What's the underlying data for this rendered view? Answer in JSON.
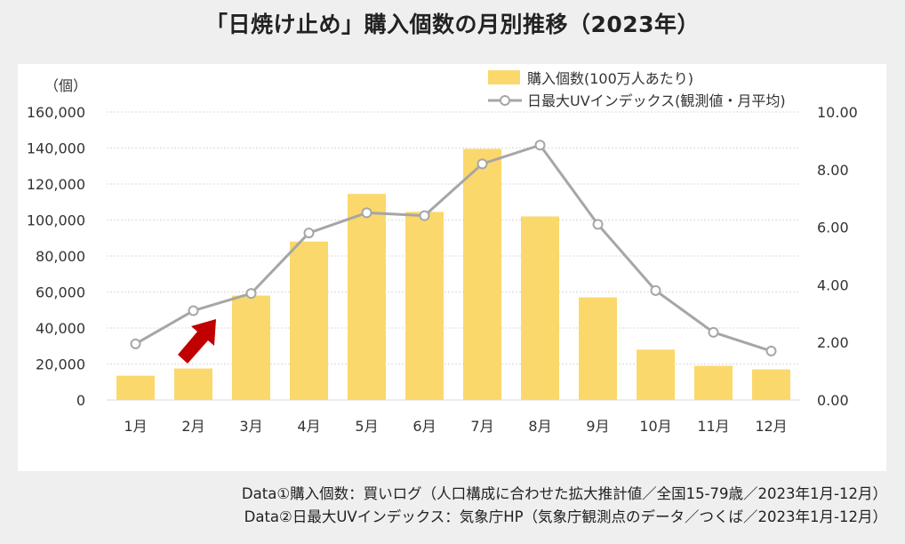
{
  "title": "「日焼け止め」購入個数の月別推移（2023年）",
  "chart_data": {
    "type": "bar+line",
    "title": "「日焼け止め」購入個数の月別推移（2023年）",
    "categories": [
      "1月",
      "2月",
      "3月",
      "4月",
      "5月",
      "6月",
      "7月",
      "8月",
      "9月",
      "10月",
      "11月",
      "12月"
    ],
    "y_left": {
      "unit": "（個）",
      "lim": [
        0,
        160000
      ],
      "ticks": [
        "0",
        "20,000",
        "40,000",
        "60,000",
        "80,000",
        "100,000",
        "120,000",
        "140,000",
        "160,000"
      ],
      "tick_values": [
        0,
        20000,
        40000,
        60000,
        80000,
        100000,
        120000,
        140000,
        160000
      ]
    },
    "y_right": {
      "lim": [
        0,
        10
      ],
      "ticks": [
        "0.00",
        "2.00",
        "4.00",
        "6.00",
        "8.00",
        "10.00"
      ],
      "tick_values": [
        0,
        2,
        4,
        6,
        8,
        10
      ]
    },
    "series": [
      {
        "name": "購入個数(100万人あたり)",
        "type": "bar",
        "axis": "left",
        "color": "#fbd86b",
        "values": [
          13500,
          17500,
          58000,
          88000,
          114500,
          104500,
          139500,
          102000,
          57000,
          28000,
          19000,
          17000
        ]
      },
      {
        "name": "日最大UVインデックス(観測値・月平均)",
        "type": "line",
        "axis": "right",
        "color": "#a6a6a6",
        "values": [
          1.95,
          3.1,
          3.7,
          5.8,
          6.5,
          6.4,
          8.2,
          8.85,
          6.1,
          3.8,
          2.35,
          1.7
        ]
      }
    ],
    "annotation": {
      "type": "arrow",
      "color": "#c00000",
      "near": "2月"
    },
    "legend": "top-right",
    "grid": true
  },
  "sources": {
    "line1": "Data①購入個数：買いログ（人口構成に合わせた拡大推計値／全国15-79歳／2023年1月-12月）",
    "line2": "Data②日最大UVインデックス：気象庁HP（気象庁観測点のデータ／つくば／2023年1月-12月）"
  }
}
